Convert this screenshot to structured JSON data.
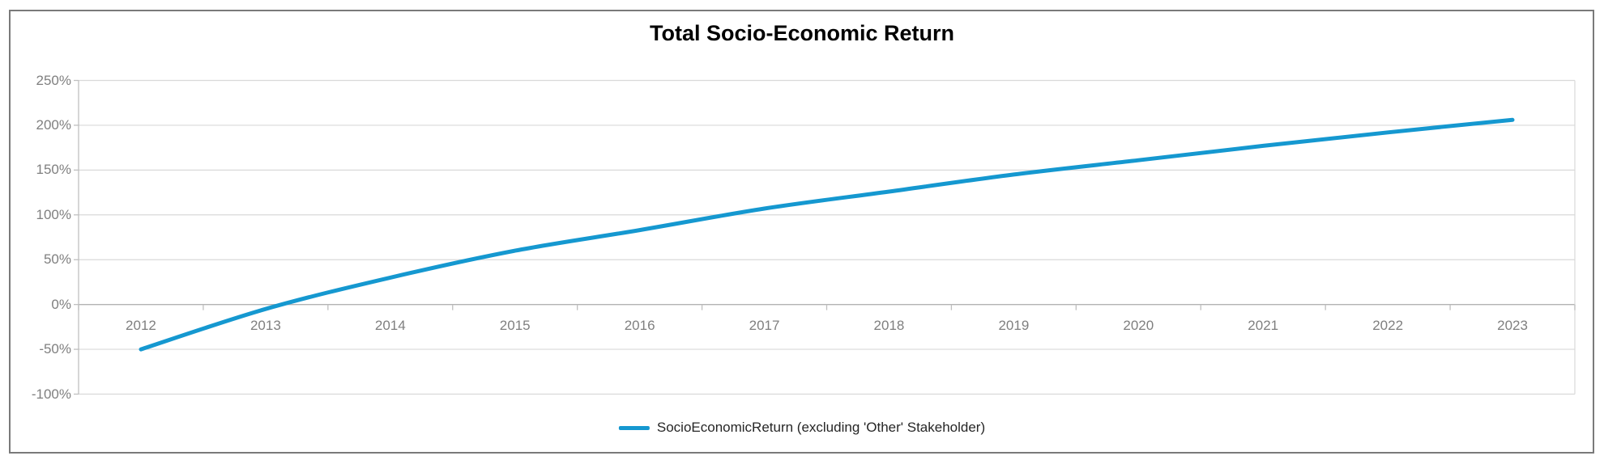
{
  "title": "Total Socio-Economic Return",
  "legend_label": "SocioEconomicReturn (excluding 'Other' Stakeholder)",
  "colors": {
    "line": "#1598d0",
    "gridline": "#d9d9d9",
    "zero_axis": "#b3b3b3",
    "y_axis": "#bfbfbf",
    "plot_right_border": "#d9d9d9",
    "tick_label": "#7f7f7f",
    "title_text": "#000000",
    "legend_text": "#262626",
    "frame_border": "#7a7a7a"
  },
  "chart_data": {
    "type": "line",
    "title": "Total Socio-Economic Return",
    "categories": [
      "2012",
      "2013",
      "2014",
      "2015",
      "2016",
      "2017",
      "2018",
      "2019",
      "2020",
      "2021",
      "2022",
      "2023"
    ],
    "series": [
      {
        "name": "SocioEconomicReturn (excluding 'Other' Stakeholder)",
        "values": [
          -50,
          -5,
          30,
          60,
          83,
          107,
          126,
          145,
          161,
          177,
          192,
          206
        ]
      }
    ],
    "value_unit": "%",
    "xlabel": "",
    "ylabel": "",
    "ylim": [
      -100,
      250
    ],
    "y_tick_step": 50,
    "y_tick_labels": [
      "250%",
      "200%",
      "150%",
      "100%",
      "50%",
      "0%",
      "-50%",
      "-100%"
    ],
    "grid": "horizontal",
    "smooth_line": true,
    "legend_position": "bottom-center"
  }
}
